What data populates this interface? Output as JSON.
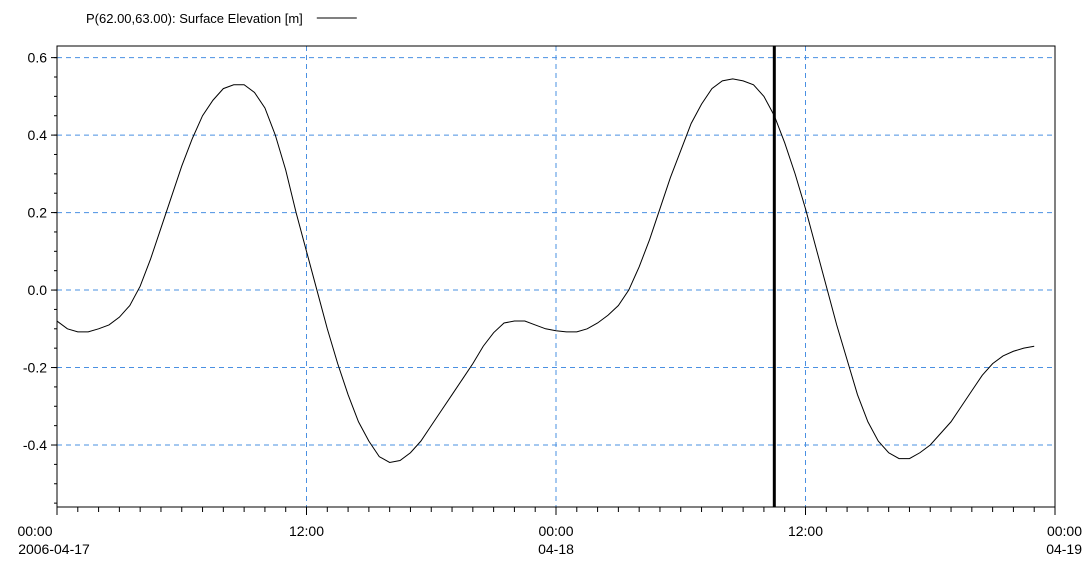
{
  "chart_data": {
    "type": "line",
    "legend": {
      "position": "top-left"
    },
    "xaxis": {
      "range": [
        "2006-04-17 00:00",
        "2006-04-19 00:00"
      ],
      "ticks": [
        {
          "time": "2006-04-17 00:00",
          "line1": "00:00",
          "line2": "2006-04-17"
        },
        {
          "time": "2006-04-17 12:00",
          "line1": "12:00",
          "line2": ""
        },
        {
          "time": "2006-04-18 00:00",
          "line1": "00:00",
          "line2": "04-18"
        },
        {
          "time": "2006-04-18 12:00",
          "line1": "12:00",
          "line2": ""
        },
        {
          "time": "2006-04-19 00:00",
          "line1": "00:00",
          "line2": "04-19"
        }
      ],
      "minor_tick_hours": 1
    },
    "yaxis": {
      "range": [
        -0.56,
        0.63
      ],
      "tick_values": [
        -0.4,
        -0.2,
        0.0,
        0.2,
        0.4,
        0.6
      ],
      "tick_labels": [
        "-0.4",
        "-0.2",
        "0.0",
        "0.2",
        "0.4",
        "0.6"
      ]
    },
    "grid": {
      "x": true,
      "y": true,
      "style": "dashed",
      "color": "#4a90e2"
    },
    "cursor": {
      "time": "2006-04-18 10:30",
      "color": "#000000"
    },
    "series": [
      {
        "name": "P(62.00,63.00): Surface Elevation [m]",
        "color": "#000000",
        "points": [
          [
            "2006-04-17 00:00",
            -0.08
          ],
          [
            "2006-04-17 00:30",
            -0.1
          ],
          [
            "2006-04-17 01:00",
            -0.108
          ],
          [
            "2006-04-17 01:30",
            -0.108
          ],
          [
            "2006-04-17 02:00",
            -0.1
          ],
          [
            "2006-04-17 02:30",
            -0.09
          ],
          [
            "2006-04-17 03:00",
            -0.07
          ],
          [
            "2006-04-17 03:30",
            -0.04
          ],
          [
            "2006-04-17 04:00",
            0.01
          ],
          [
            "2006-04-17 04:30",
            0.08
          ],
          [
            "2006-04-17 05:00",
            0.16
          ],
          [
            "2006-04-17 05:30",
            0.24
          ],
          [
            "2006-04-17 06:00",
            0.32
          ],
          [
            "2006-04-17 06:30",
            0.39
          ],
          [
            "2006-04-17 07:00",
            0.45
          ],
          [
            "2006-04-17 07:30",
            0.49
          ],
          [
            "2006-04-17 08:00",
            0.52
          ],
          [
            "2006-04-17 08:30",
            0.53
          ],
          [
            "2006-04-17 09:00",
            0.53
          ],
          [
            "2006-04-17 09:30",
            0.51
          ],
          [
            "2006-04-17 10:00",
            0.47
          ],
          [
            "2006-04-17 10:30",
            0.4
          ],
          [
            "2006-04-17 11:00",
            0.31
          ],
          [
            "2006-04-17 11:30",
            0.2
          ],
          [
            "2006-04-17 12:00",
            0.1
          ],
          [
            "2006-04-17 12:30",
            0.0
          ],
          [
            "2006-04-17 13:00",
            -0.1
          ],
          [
            "2006-04-17 13:30",
            -0.19
          ],
          [
            "2006-04-17 14:00",
            -0.27
          ],
          [
            "2006-04-17 14:30",
            -0.34
          ],
          [
            "2006-04-17 15:00",
            -0.39
          ],
          [
            "2006-04-17 15:30",
            -0.43
          ],
          [
            "2006-04-17 16:00",
            -0.445
          ],
          [
            "2006-04-17 16:30",
            -0.44
          ],
          [
            "2006-04-17 17:00",
            -0.42
          ],
          [
            "2006-04-17 17:30",
            -0.39
          ],
          [
            "2006-04-17 18:00",
            -0.35
          ],
          [
            "2006-04-17 18:30",
            -0.31
          ],
          [
            "2006-04-17 19:00",
            -0.27
          ],
          [
            "2006-04-17 19:30",
            -0.23
          ],
          [
            "2006-04-17 20:00",
            -0.19
          ],
          [
            "2006-04-17 20:30",
            -0.145
          ],
          [
            "2006-04-17 21:00",
            -0.11
          ],
          [
            "2006-04-17 21:30",
            -0.085
          ],
          [
            "2006-04-17 22:00",
            -0.08
          ],
          [
            "2006-04-17 22:30",
            -0.08
          ],
          [
            "2006-04-17 23:00",
            -0.09
          ],
          [
            "2006-04-17 23:30",
            -0.1
          ],
          [
            "2006-04-18 00:00",
            -0.105
          ],
          [
            "2006-04-18 00:30",
            -0.108
          ],
          [
            "2006-04-18 01:00",
            -0.108
          ],
          [
            "2006-04-18 01:30",
            -0.1
          ],
          [
            "2006-04-18 02:00",
            -0.085
          ],
          [
            "2006-04-18 02:30",
            -0.065
          ],
          [
            "2006-04-18 03:00",
            -0.04
          ],
          [
            "2006-04-18 03:30",
            0.0
          ],
          [
            "2006-04-18 04:00",
            0.06
          ],
          [
            "2006-04-18 04:30",
            0.13
          ],
          [
            "2006-04-18 05:00",
            0.21
          ],
          [
            "2006-04-18 05:30",
            0.29
          ],
          [
            "2006-04-18 06:00",
            0.36
          ],
          [
            "2006-04-18 06:30",
            0.43
          ],
          [
            "2006-04-18 07:00",
            0.48
          ],
          [
            "2006-04-18 07:30",
            0.52
          ],
          [
            "2006-04-18 08:00",
            0.54
          ],
          [
            "2006-04-18 08:30",
            0.545
          ],
          [
            "2006-04-18 09:00",
            0.54
          ],
          [
            "2006-04-18 09:30",
            0.53
          ],
          [
            "2006-04-18 10:00",
            0.5
          ],
          [
            "2006-04-18 10:30",
            0.45
          ],
          [
            "2006-04-18 11:00",
            0.38
          ],
          [
            "2006-04-18 11:30",
            0.3
          ],
          [
            "2006-04-18 12:00",
            0.21
          ],
          [
            "2006-04-18 12:30",
            0.11
          ],
          [
            "2006-04-18 13:00",
            0.01
          ],
          [
            "2006-04-18 13:30",
            -0.09
          ],
          [
            "2006-04-18 14:00",
            -0.18
          ],
          [
            "2006-04-18 14:30",
            -0.27
          ],
          [
            "2006-04-18 15:00",
            -0.34
          ],
          [
            "2006-04-18 15:30",
            -0.39
          ],
          [
            "2006-04-18 16:00",
            -0.42
          ],
          [
            "2006-04-18 16:30",
            -0.435
          ],
          [
            "2006-04-18 17:00",
            -0.435
          ],
          [
            "2006-04-18 17:30",
            -0.42
          ],
          [
            "2006-04-18 18:00",
            -0.4
          ],
          [
            "2006-04-18 18:30",
            -0.37
          ],
          [
            "2006-04-18 19:00",
            -0.34
          ],
          [
            "2006-04-18 19:30",
            -0.3
          ],
          [
            "2006-04-18 20:00",
            -0.26
          ],
          [
            "2006-04-18 20:30",
            -0.22
          ],
          [
            "2006-04-18 21:00",
            -0.19
          ],
          [
            "2006-04-18 21:30",
            -0.17
          ],
          [
            "2006-04-18 22:00",
            -0.158
          ],
          [
            "2006-04-18 22:30",
            -0.15
          ],
          [
            "2006-04-18 23:00",
            -0.145
          ]
        ]
      }
    ]
  }
}
